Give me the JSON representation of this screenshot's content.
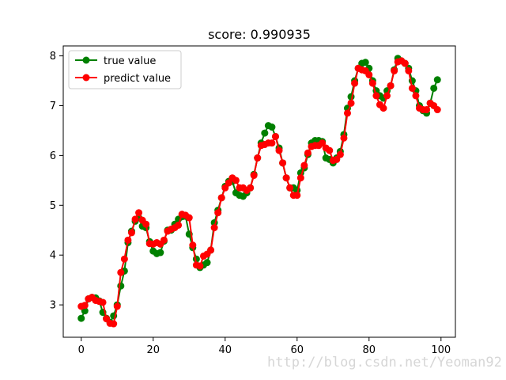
{
  "chart_data": {
    "type": "line",
    "title": "score: 0.990935",
    "xlabel": "",
    "ylabel": "",
    "xlim": [
      -5,
      104
    ],
    "ylim": [
      2.35,
      8.2
    ],
    "xticks": [
      0,
      20,
      40,
      60,
      80,
      100
    ],
    "yticks": [
      3,
      4,
      5,
      6,
      7,
      8
    ],
    "grid": false,
    "legend_position": "top-left",
    "series": [
      {
        "name": "true value",
        "color": "#008000",
        "marker": "circle",
        "x": [
          0,
          1,
          2,
          3,
          4,
          5,
          6,
          7,
          8,
          9,
          10,
          11,
          12,
          13,
          14,
          15,
          16,
          17,
          18,
          19,
          20,
          21,
          22,
          23,
          24,
          25,
          26,
          27,
          28,
          29,
          30,
          31,
          32,
          33,
          34,
          35,
          36,
          37,
          38,
          39,
          40,
          41,
          42,
          43,
          44,
          45,
          46,
          47,
          48,
          49,
          50,
          51,
          52,
          53,
          54,
          55,
          56,
          57,
          58,
          59,
          60,
          61,
          62,
          63,
          64,
          65,
          66,
          67,
          68,
          69,
          70,
          71,
          72,
          73,
          74,
          75,
          76,
          77,
          78,
          79,
          80,
          81,
          82,
          83,
          84,
          85,
          86,
          87,
          88,
          89,
          90,
          91,
          92,
          93,
          94,
          95,
          96,
          97,
          98,
          99
        ],
        "values": [
          2.73,
          2.88,
          3.12,
          3.15,
          3.14,
          3.08,
          2.85,
          2.73,
          2.65,
          2.78,
          3.0,
          3.38,
          3.68,
          4.25,
          4.48,
          4.68,
          4.75,
          4.58,
          4.55,
          4.27,
          4.08,
          4.03,
          4.05,
          4.28,
          4.5,
          4.5,
          4.62,
          4.72,
          4.77,
          4.78,
          4.42,
          4.15,
          3.92,
          3.75,
          3.8,
          3.85,
          4.1,
          4.65,
          4.9,
          5.15,
          5.38,
          5.48,
          5.48,
          5.25,
          5.2,
          5.18,
          5.25,
          5.35,
          5.62,
          5.95,
          6.25,
          6.45,
          6.6,
          6.57,
          6.38,
          6.15,
          5.85,
          5.55,
          5.35,
          5.35,
          5.3,
          5.65,
          5.75,
          6.02,
          6.25,
          6.3,
          6.3,
          6.28,
          5.95,
          5.92,
          5.85,
          5.95,
          6.08,
          6.42,
          6.95,
          7.18,
          7.5,
          7.75,
          7.85,
          7.87,
          7.75,
          7.5,
          7.3,
          7.2,
          7.15,
          7.3,
          7.4,
          7.72,
          7.95,
          7.9,
          7.85,
          7.75,
          7.5,
          7.3,
          7.0,
          6.9,
          6.85,
          7.05,
          7.35,
          7.52
        ]
      },
      {
        "name": "predict value",
        "color": "#ff0000",
        "marker": "circle",
        "x": [
          0,
          1,
          2,
          3,
          4,
          5,
          6,
          7,
          8,
          9,
          10,
          11,
          12,
          13,
          14,
          15,
          16,
          17,
          18,
          19,
          20,
          21,
          22,
          23,
          24,
          25,
          26,
          27,
          28,
          29,
          30,
          31,
          32,
          33,
          34,
          35,
          36,
          37,
          38,
          39,
          40,
          41,
          42,
          43,
          44,
          45,
          46,
          47,
          48,
          49,
          50,
          51,
          52,
          53,
          54,
          55,
          56,
          57,
          58,
          59,
          60,
          61,
          62,
          63,
          64,
          65,
          66,
          67,
          68,
          69,
          70,
          71,
          72,
          73,
          74,
          75,
          76,
          77,
          78,
          79,
          80,
          81,
          82,
          83,
          84,
          85,
          86,
          87,
          88,
          89,
          90,
          91,
          92,
          93,
          94,
          95,
          96,
          97,
          98,
          99
        ],
        "values": [
          2.97,
          2.99,
          3.12,
          3.15,
          3.09,
          3.07,
          3.05,
          2.72,
          2.63,
          2.62,
          2.97,
          3.65,
          3.92,
          4.3,
          4.45,
          4.72,
          4.85,
          4.7,
          4.62,
          4.23,
          4.22,
          4.25,
          4.22,
          4.3,
          4.48,
          4.52,
          4.55,
          4.6,
          4.82,
          4.8,
          4.75,
          4.2,
          3.8,
          3.78,
          3.98,
          4.02,
          4.1,
          4.55,
          4.85,
          5.15,
          5.35,
          5.45,
          5.55,
          5.5,
          5.35,
          5.35,
          5.3,
          5.35,
          5.6,
          5.95,
          6.2,
          6.22,
          6.25,
          6.25,
          6.38,
          6.1,
          5.85,
          5.55,
          5.35,
          5.2,
          5.2,
          5.55,
          5.8,
          6.05,
          6.18,
          6.2,
          6.2,
          6.25,
          6.15,
          6.1,
          5.9,
          5.92,
          6.02,
          6.35,
          6.85,
          7.05,
          7.45,
          7.75,
          7.72,
          7.7,
          7.62,
          7.45,
          7.2,
          7.02,
          6.95,
          7.2,
          7.4,
          7.7,
          7.88,
          7.9,
          7.85,
          7.7,
          7.35,
          7.2,
          6.95,
          6.92,
          6.92,
          7.05,
          7.0,
          6.92
        ]
      }
    ]
  },
  "watermark": "http://blog.csdn.net/Yeoman92"
}
